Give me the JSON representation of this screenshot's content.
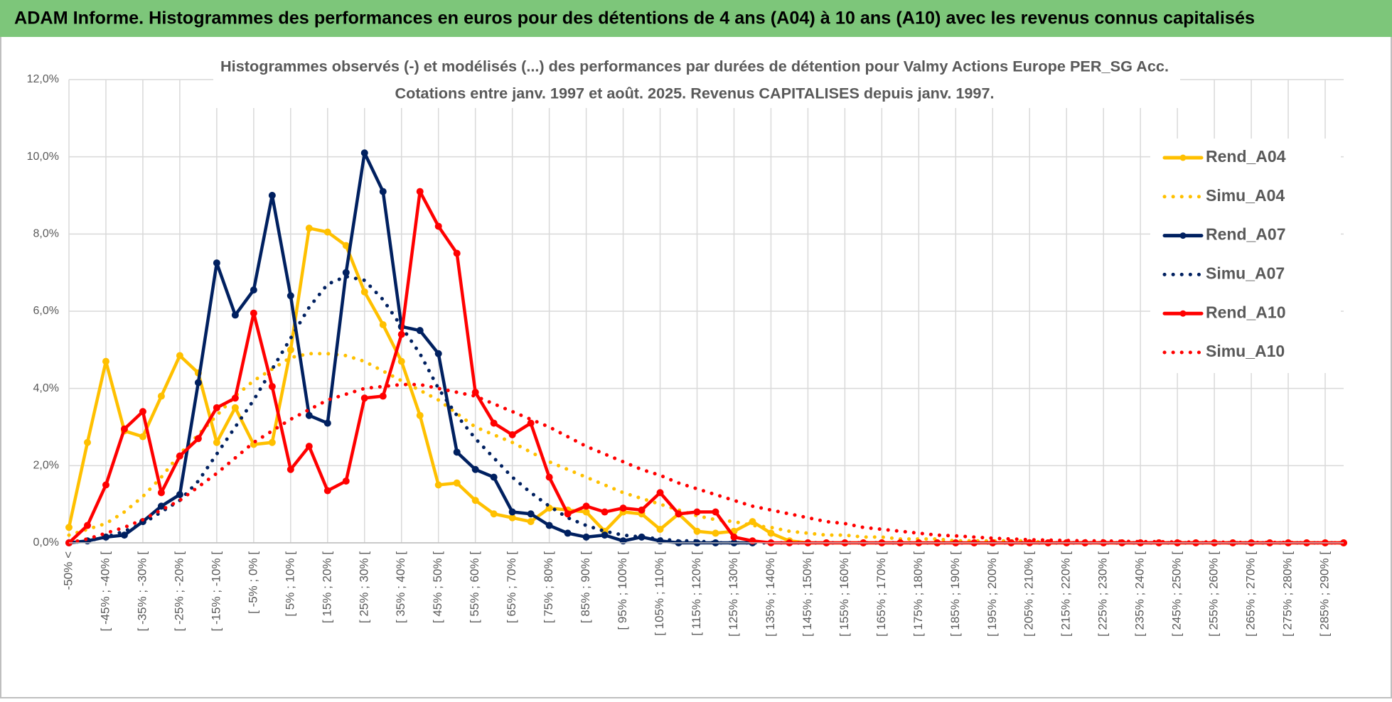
{
  "chart_data": {
    "type": "line",
    "title": "ADAM Informe. Histogrammes des performances en euros pour des détentions de 4 ans (A04) à 10 ans (A10) avec les revenus connus capitalisés",
    "subtitle": [
      "Histogrammes observés (-) et modélisés (...) des performances par durées de détention pour Valmy Actions Europe PER_SG Acc.",
      "Cotations entre janv. 1997 et août. 2025. Revenus CAPITALISES depuis janv. 1997."
    ],
    "categories": [
      "-50% <",
      null,
      "[ -45% ; -40% [",
      null,
      "[ -35% ; -30% [",
      null,
      "[ -25% ; -20% [",
      null,
      "[ -15% ; -10% [",
      null,
      "[ -5% ; 0% [",
      null,
      "[ 5% ; 10% [",
      null,
      "[ 15% ; 20% [",
      null,
      "[ 25% ; 30% [",
      null,
      "[ 35% ; 40% [",
      null,
      "[ 45% ; 50% [",
      null,
      "[ 55% ; 60% [",
      null,
      "[ 65% ; 70% [",
      null,
      "[ 75% ; 80% [",
      null,
      "[ 85% ; 90% [",
      null,
      "[ 95% ; 100% [",
      null,
      "[ 105% ; 110% [",
      null,
      "[ 115% ; 120% [",
      null,
      "[ 125% ; 130% [",
      null,
      "[ 135% ; 140% [",
      null,
      "[ 145% ; 150% [",
      null,
      "[ 155% ; 160% [",
      null,
      "[ 165% ; 170% [",
      null,
      "[ 175% ; 180% [",
      null,
      "[ 185% ; 190% [",
      null,
      "[ 195% ; 200% [",
      null,
      "[ 205% ; 210% [",
      null,
      "[ 215% ; 220% [",
      null,
      "[ 225% ; 230% [",
      null,
      "[ 235% ; 240% [",
      null,
      "[ 245% ; 250% [",
      null,
      "[ 255% ; 260% [",
      null,
      "[ 265% ; 270% [",
      null,
      "[ 275% ; 280% [",
      null,
      "[ 285% ; 290% [",
      null
    ],
    "ylim": [
      0,
      12
    ],
    "yticks": [
      {
        "value": 0,
        "label": "0,0%"
      },
      {
        "value": 2,
        "label": "2,0%"
      },
      {
        "value": 4,
        "label": "4,0%"
      },
      {
        "value": 6,
        "label": "6,0%"
      },
      {
        "value": 8,
        "label": "8,0%"
      },
      {
        "value": 10,
        "label": "10,0%"
      },
      {
        "value": 12,
        "label": "12,0%"
      }
    ],
    "grid": true,
    "legend": "right",
    "series": [
      {
        "name": "Rend_A04",
        "color": "#ffc000",
        "style": "solid",
        "marker": true,
        "values": [
          0.4,
          2.6,
          4.7,
          2.9,
          2.75,
          3.8,
          4.85,
          4.4,
          2.6,
          3.5,
          2.55,
          2.6,
          5.0,
          8.15,
          8.05,
          7.7,
          6.5,
          5.65,
          4.7,
          3.3,
          1.5,
          1.55,
          1.1,
          0.75,
          0.65,
          0.55,
          0.9,
          0.85,
          0.8,
          0.3,
          0.8,
          0.75,
          0.35,
          0.75,
          0.3,
          0.25,
          0.3,
          0.55,
          0.25,
          0.05,
          0,
          0,
          0,
          0,
          0,
          0,
          0,
          0,
          0,
          0,
          0,
          0,
          0,
          0,
          0,
          0,
          0,
          0,
          0,
          0,
          0,
          0,
          0,
          0,
          0,
          0,
          0,
          0,
          0,
          0
        ]
      },
      {
        "name": "Simu_A04",
        "color": "#ffc000",
        "style": "dotted",
        "marker": false,
        "values": [
          0.2,
          0.35,
          0.5,
          0.8,
          1.2,
          1.7,
          2.3,
          2.8,
          3.3,
          3.8,
          4.2,
          4.5,
          4.8,
          4.9,
          4.9,
          4.85,
          4.7,
          4.45,
          4.2,
          3.95,
          3.7,
          3.35,
          3.0,
          2.8,
          2.6,
          2.35,
          2.1,
          1.9,
          1.7,
          1.5,
          1.3,
          1.15,
          1.0,
          0.85,
          0.7,
          0.6,
          0.55,
          0.45,
          0.4,
          0.3,
          0.25,
          0.2,
          0.2,
          0.15,
          0.15,
          0.1,
          0.1,
          0.1,
          0.05,
          0.05,
          0.05,
          0.05,
          0.05,
          0,
          0,
          0,
          0,
          0,
          0,
          0,
          0,
          0,
          0,
          0,
          0,
          0,
          0,
          0,
          0,
          0
        ]
      },
      {
        "name": "Rend_A07",
        "color": "#002060",
        "style": "solid",
        "marker": true,
        "values": [
          0,
          0.05,
          0.15,
          0.2,
          0.55,
          0.95,
          1.25,
          4.15,
          7.25,
          5.9,
          6.55,
          9.0,
          6.4,
          3.3,
          3.1,
          7.0,
          10.1,
          9.1,
          5.6,
          5.5,
          4.9,
          2.35,
          1.9,
          1.7,
          0.8,
          0.75,
          0.45,
          0.25,
          0.15,
          0.2,
          0.05,
          0.15,
          0.05,
          0,
          0,
          0,
          0,
          0,
          null,
          null,
          null,
          null,
          null,
          null,
          null,
          null,
          null,
          null,
          null,
          null,
          null,
          null,
          null,
          null,
          null,
          null,
          null,
          null,
          null,
          null,
          null,
          null,
          null,
          null,
          null,
          null,
          null,
          null,
          null,
          null
        ]
      },
      {
        "name": "Simu_A07",
        "color": "#002060",
        "style": "dotted",
        "marker": false,
        "values": [
          0,
          0.05,
          0.15,
          0.3,
          0.5,
          0.8,
          1.1,
          1.6,
          2.3,
          3.0,
          3.7,
          4.5,
          5.3,
          6.1,
          6.7,
          6.9,
          6.8,
          6.3,
          5.6,
          4.9,
          4.0,
          3.3,
          2.7,
          2.2,
          1.7,
          1.3,
          0.95,
          0.65,
          0.45,
          0.3,
          0.2,
          0.15,
          0.1,
          0.05,
          0.05,
          0,
          0,
          0,
          0,
          0,
          0,
          0,
          0,
          0,
          0,
          0,
          0,
          0,
          0,
          0,
          0,
          0,
          0,
          0,
          0,
          0,
          0,
          0,
          0,
          0,
          0,
          0,
          0,
          0,
          0,
          0,
          0,
          0,
          0,
          0
        ]
      },
      {
        "name": "Rend_A10",
        "color": "#ff0000",
        "style": "solid",
        "marker": true,
        "values": [
          0,
          0.45,
          1.5,
          2.95,
          3.4,
          1.3,
          2.25,
          2.7,
          3.5,
          3.75,
          5.95,
          4.05,
          1.9,
          2.5,
          1.35,
          1.6,
          3.75,
          3.8,
          5.4,
          9.1,
          8.2,
          7.5,
          3.9,
          3.1,
          2.8,
          3.1,
          1.7,
          0.75,
          0.95,
          0.8,
          0.9,
          0.85,
          1.3,
          0.75,
          0.8,
          0.8,
          0.15,
          0.05,
          0,
          0,
          0,
          0,
          0,
          0,
          0,
          0,
          0,
          0,
          0,
          0,
          0,
          0,
          0,
          0,
          0,
          0,
          0,
          0,
          0,
          0,
          0,
          0,
          0,
          0,
          0,
          0,
          0,
          0,
          0,
          0
        ]
      },
      {
        "name": "Simu_A10",
        "color": "#ff0000",
        "style": "dotted",
        "marker": false,
        "values": [
          0,
          0.1,
          0.25,
          0.4,
          0.6,
          0.85,
          1.1,
          1.45,
          1.8,
          2.2,
          2.6,
          2.9,
          3.2,
          3.45,
          3.7,
          3.85,
          4.0,
          4.05,
          4.1,
          4.1,
          4.0,
          3.9,
          3.8,
          3.6,
          3.4,
          3.2,
          3.0,
          2.75,
          2.5,
          2.3,
          2.1,
          1.9,
          1.75,
          1.55,
          1.4,
          1.25,
          1.1,
          0.95,
          0.85,
          0.75,
          0.65,
          0.55,
          0.5,
          0.4,
          0.35,
          0.3,
          0.25,
          0.2,
          0.18,
          0.15,
          0.12,
          0.1,
          0.08,
          0.07,
          0.06,
          0.05,
          0.05,
          0.04,
          0.03,
          0.03,
          0.02,
          0.02,
          0.02,
          0.01,
          0.01,
          0.01,
          0.01,
          0,
          0,
          0
        ]
      }
    ]
  }
}
